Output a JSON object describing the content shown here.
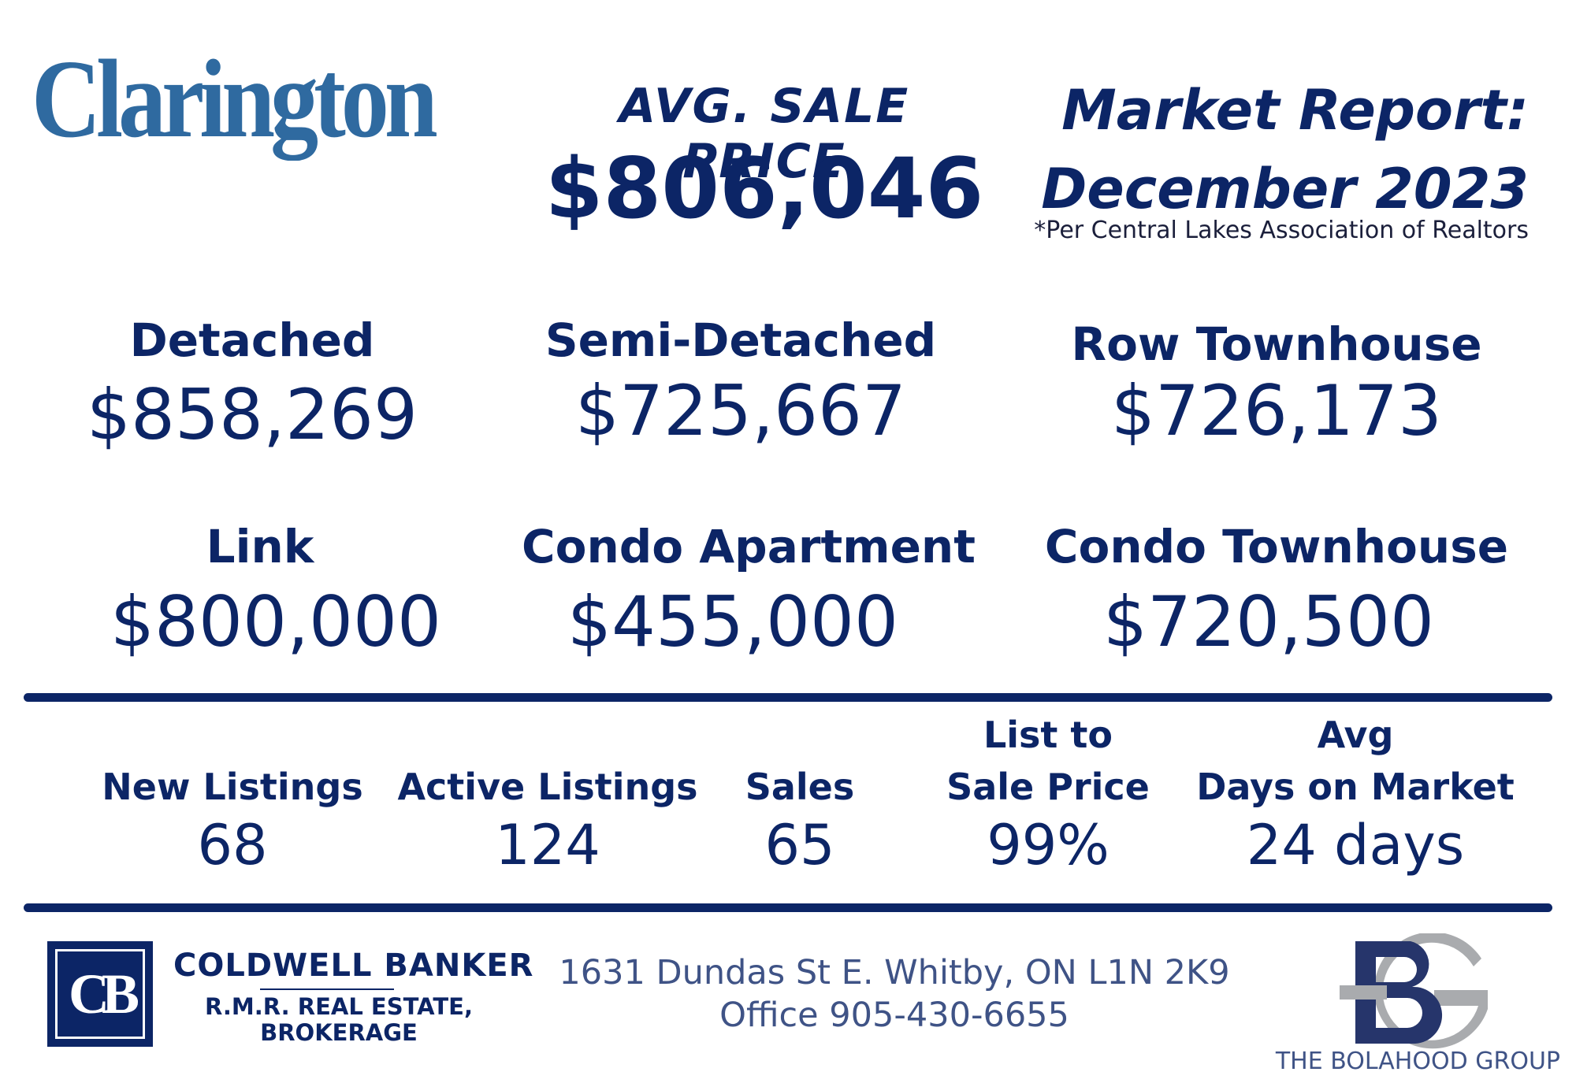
{
  "town_logo": "Clarington",
  "avg_sale": {
    "label": "AVG. SALE PRICE",
    "value": "$806,046"
  },
  "report": {
    "title_line1": "Market Report:",
    "title_line2": "December 2023",
    "source": "*Per Central Lakes Association of Realtors"
  },
  "property_types": [
    {
      "label": "Detached",
      "value": "$858,269"
    },
    {
      "label": "Semi-Detached",
      "value": "$725,667"
    },
    {
      "label": "Row Townhouse",
      "value": "$726,173"
    },
    {
      "label": "Link",
      "value": "$800,000"
    },
    {
      "label": "Condo Apartment",
      "value": "$455,000"
    },
    {
      "label": "Condo Townhouse",
      "value": "$720,500"
    }
  ],
  "stats": [
    {
      "label_line1": "",
      "label_line2": "New Listings",
      "value": "68"
    },
    {
      "label_line1": "",
      "label_line2": "Active Listings",
      "value": "124"
    },
    {
      "label_line1": "",
      "label_line2": "Sales",
      "value": "65"
    },
    {
      "label_line1": "List to",
      "label_line2": "Sale Price",
      "value": "99%"
    },
    {
      "label_line1": "Avg",
      "label_line2": "Days on Market",
      "value": "24 days"
    }
  ],
  "brokerage": {
    "logo_letters": "CB",
    "name": "COLDWELL BANKER",
    "sub_line1": "R.M.R. REAL ESTATE,",
    "sub_line2": "BROKERAGE"
  },
  "office": {
    "address": "1631 Dundas St E. Whitby, ON L1N 2K9",
    "phone": "Office 905-430-6655"
  },
  "group": {
    "logo_letters": "BG",
    "name": "THE BOLAHOOD GROUP"
  },
  "colors": {
    "navy": "#0c2566",
    "logo_blue": "#2f6aa0",
    "grey": "#a9abae",
    "text_muted": "#3f5386"
  }
}
